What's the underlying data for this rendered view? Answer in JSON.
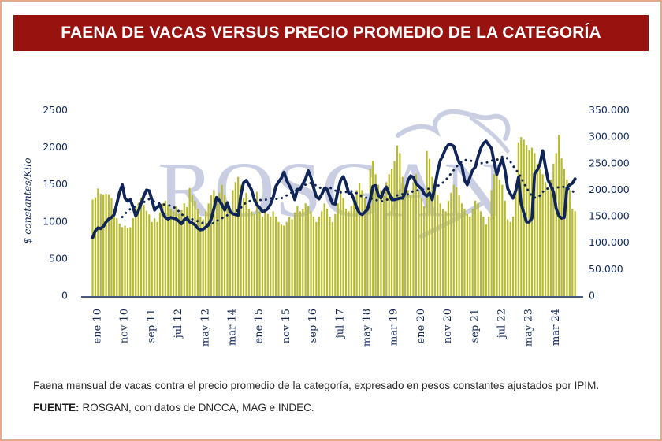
{
  "colors": {
    "header_bg": "#98130f",
    "bars": "#b7ba2c",
    "line": "#0f2557",
    "watermark": "#c9cee3",
    "border": "#e3a98b"
  },
  "watermark": {
    "text": "ROSGAN"
  },
  "footer": {
    "caption": "Faena mensual de vacas contra el precio promedio de la categoría, expresado en pesos constantes ajustados por IPIM.",
    "source_label": "FUENTE:",
    "source_text": "ROSGAN, con datos de DNCCA, MAG e INDEC."
  },
  "chart_data": {
    "type": "bar+line",
    "title": "FAENA DE VACAS VERSUS PRECIO PROMEDIO DE LA CATEGORÍA",
    "ylabel_left": "$ constantes/Kilo",
    "ylim_left": [
      0,
      2500
    ],
    "ylim_right": [
      0,
      350000
    ],
    "grid": false,
    "yticks_left": [
      {
        "value": 0,
        "label": "0"
      },
      {
        "value": 500,
        "label": "500"
      },
      {
        "value": 1000,
        "label": "1000"
      },
      {
        "value": 1500,
        "label": "1500"
      },
      {
        "value": 2000,
        "label": "2000"
      },
      {
        "value": 2500,
        "label": "2500"
      }
    ],
    "yticks_right": [
      {
        "value": 0,
        "label": "0"
      },
      {
        "value": 50000,
        "label": "50.000"
      },
      {
        "value": 100000,
        "label": "100.000"
      },
      {
        "value": 150000,
        "label": "150.000"
      },
      {
        "value": 200000,
        "label": "200.000"
      },
      {
        "value": 250000,
        "label": "250.000"
      },
      {
        "value": 300000,
        "label": "300.000"
      },
      {
        "value": 350000,
        "label": "350.000"
      }
    ],
    "x_ticks": [
      {
        "index": 0,
        "label": "ene 10"
      },
      {
        "index": 10,
        "label": "nov 10"
      },
      {
        "index": 20,
        "label": "sep 11"
      },
      {
        "index": 30,
        "label": "jul 12"
      },
      {
        "index": 40,
        "label": "may 12"
      },
      {
        "index": 50,
        "label": "mar 14"
      },
      {
        "index": 60,
        "label": "ene 15"
      },
      {
        "index": 70,
        "label": "nov 15"
      },
      {
        "index": 80,
        "label": "sep 16"
      },
      {
        "index": 90,
        "label": "jul 17"
      },
      {
        "index": 100,
        "label": "may 18"
      },
      {
        "index": 110,
        "label": "mar 19"
      },
      {
        "index": 120,
        "label": "ene 20"
      },
      {
        "index": 130,
        "label": "nov 20"
      },
      {
        "index": 140,
        "label": "sep 21"
      },
      {
        "index": 150,
        "label": "jul 22"
      },
      {
        "index": 160,
        "label": "may 23"
      },
      {
        "index": 170,
        "label": "mar 24"
      }
    ],
    "bars": {
      "axis": "right",
      "values": [
        182000,
        186000,
        203000,
        193000,
        192000,
        193000,
        192000,
        185000,
        165000,
        147000,
        137000,
        130000,
        133000,
        129000,
        130000,
        147000,
        168000,
        176000,
        186000,
        172000,
        161000,
        154000,
        140000,
        147000,
        140000,
        158000,
        175000,
        180000,
        172000,
        165000,
        160000,
        170000,
        155000,
        162000,
        175000,
        168000,
        204000,
        190000,
        180000,
        165000,
        150000,
        145000,
        160000,
        175000,
        190000,
        200000,
        185000,
        195000,
        210000,
        190000,
        175000,
        165000,
        200000,
        215000,
        225000,
        210000,
        185000,
        195000,
        165000,
        160000,
        155000,
        197000,
        160000,
        150000,
        165000,
        155000,
        150000,
        160000,
        150000,
        140000,
        135000,
        133000,
        140000,
        150000,
        145000,
        158000,
        170000,
        160000,
        165000,
        175000,
        170000,
        160000,
        150000,
        140000,
        150000,
        160000,
        175000,
        165000,
        150000,
        140000,
        155000,
        175000,
        200000,
        185000,
        165000,
        160000,
        170000,
        185000,
        200000,
        214000,
        200000,
        185000,
        170000,
        240000,
        255000,
        230000,
        210000,
        200000,
        190000,
        215000,
        230000,
        240000,
        255000,
        284000,
        270000,
        225000,
        210000,
        200000,
        190000,
        215000,
        230000,
        200000,
        185000,
        170000,
        274000,
        259000,
        225000,
        200000,
        190000,
        175000,
        165000,
        160000,
        180000,
        195000,
        210000,
        205000,
        190000,
        175000,
        165000,
        155000,
        150000,
        165000,
        180000,
        175000,
        160000,
        150000,
        135000,
        150000,
        200000,
        230000,
        234000,
        220000,
        210000,
        180000,
        145000,
        140000,
        150000,
        200000,
        290000,
        300000,
        295000,
        285000,
        275000,
        280000,
        270000,
        250000,
        240000,
        230000,
        215000,
        200000,
        220000,
        250000,
        270000,
        304000,
        260000,
        240000,
        220000,
        200000,
        165000,
        160000
      ]
    },
    "line": {
      "axis": "left",
      "values": [
        787,
        880,
        920,
        910,
        940,
        1000,
        1040,
        1060,
        1100,
        1250,
        1400,
        1500,
        1320,
        1280,
        1300,
        1200,
        1080,
        1150,
        1250,
        1350,
        1430,
        1420,
        1300,
        1160,
        1200,
        1230,
        1120,
        1060,
        1040,
        1060,
        1050,
        1040,
        1010,
        975,
        1030,
        1050,
        1000,
        985,
        960,
        915,
        894,
        900,
        930,
        960,
        1040,
        1180,
        1330,
        1290,
        1230,
        1160,
        1260,
        1140,
        1110,
        1100,
        1090,
        1360,
        1530,
        1560,
        1500,
        1430,
        1300,
        1230,
        1190,
        1140,
        1150,
        1180,
        1240,
        1330,
        1480,
        1540,
        1590,
        1670,
        1560,
        1490,
        1420,
        1300,
        1440,
        1440,
        1510,
        1580,
        1690,
        1600,
        1460,
        1340,
        1310,
        1370,
        1450,
        1440,
        1340,
        1250,
        1240,
        1420,
        1560,
        1610,
        1520,
        1390,
        1380,
        1300,
        1190,
        1120,
        1100,
        1130,
        1170,
        1300,
        1480,
        1490,
        1360,
        1320,
        1420,
        1470,
        1380,
        1300,
        1300,
        1310,
        1320,
        1320,
        1400,
        1560,
        1620,
        1600,
        1520,
        1480,
        1450,
        1380,
        1350,
        1390,
        1300,
        1480,
        1680,
        1830,
        1900,
        1990,
        2040,
        2040,
        2020,
        1900,
        1800,
        1760,
        1560,
        1500,
        1600,
        1700,
        1740,
        1880,
        1990,
        2060,
        2090,
        2040,
        1990,
        1800,
        1640,
        1760,
        1850,
        1700,
        1450,
        1380,
        1320,
        1420,
        1600,
        1240,
        1120,
        1000,
        1000,
        1050,
        1650,
        1700,
        1780,
        1960,
        1750,
        1560,
        1490,
        1400,
        1180,
        1080,
        1050,
        1060,
        1460,
        1500,
        1520,
        1580
      ]
    },
    "dotted": {
      "axis": "left",
      "start_index": 11,
      "values": [
        1066,
        1110,
        1143,
        1175,
        1199,
        1211,
        1223,
        1241,
        1265,
        1293,
        1307,
        1298,
        1270,
        1260,
        1256,
        1241,
        1229,
        1226,
        1218,
        1202,
        1176,
        1141,
        1104,
        1081,
        1072,
        1055,
        1035,
        1022,
        1010,
        997,
        984,
        974,
        967,
        970,
        987,
        1012,
        1032,
        1051,
        1066,
        1091,
        1110,
        1128,
        1144,
        1158,
        1191,
        1232,
        1263,
        1278,
        1289,
        1295,
        1301,
        1295,
        1295,
        1298,
        1305,
        1318,
        1315,
        1311,
        1309,
        1317,
        1337,
        1358,
        1380,
        1399,
        1413,
        1437,
        1458,
        1481,
        1502,
        1519,
        1524,
        1513,
        1486,
        1465,
        1455,
        1458,
        1469,
        1461,
        1445,
        1423,
        1409,
        1398,
        1399,
        1404,
        1408,
        1414,
        1408,
        1387,
        1360,
        1340,
        1330,
        1324,
        1314,
        1308,
        1298,
        1284,
        1278,
        1282,
        1296,
        1312,
        1327,
        1343,
        1358,
        1371,
        1373,
        1366,
        1372,
        1393,
        1417,
        1425,
        1426,
        1432,
        1438,
        1443,
        1449,
        1448,
        1461,
        1484,
        1507,
        1530,
        1563,
        1606,
        1653,
        1700,
        1743,
        1781,
        1812,
        1833,
        1835,
        1828,
        1818,
        1804,
        1795,
        1791,
        1793,
        1798,
        1810,
        1826,
        1829,
        1836,
        1858,
        1878,
        1878,
        1854,
        1813,
        1757,
        1703,
        1663,
        1596,
        1523,
        1457,
        1403,
        1344,
        1328,
        1328,
        1355,
        1403,
        1439,
        1451,
        1442,
        1455,
        1460,
        1467,
        1471,
        1472,
        1456,
        1439,
        1418,
        1386
      ]
    }
  }
}
